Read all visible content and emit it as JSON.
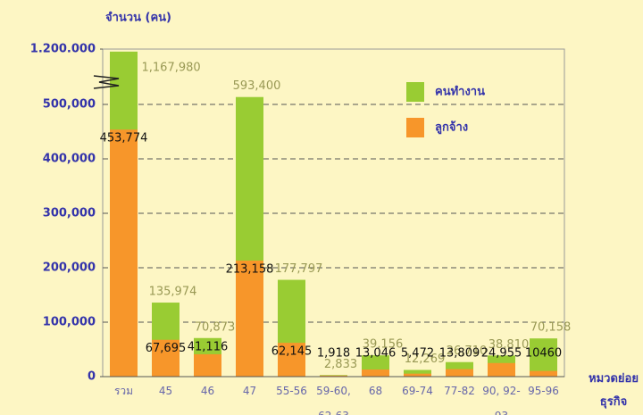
{
  "chart_data": {
    "type": "bar",
    "y_label": "จำนวน (คน)",
    "x_label": "หมวดย่อย ธุรกิจ",
    "categories": [
      "รวม",
      "45",
      "46",
      "47",
      "55-56",
      "59-60, 62-63",
      "68",
      "69-74",
      "77-82",
      "90, 92-93",
      "95-96"
    ],
    "series": [
      {
        "name": "คนทำงาน",
        "color": "#99cc33",
        "values": [
          1167980,
          135974,
          70873,
          593400,
          177797,
          2833,
          39156,
          12269,
          26710,
          38810,
          70158
        ],
        "value_labels": [
          "1,167,980",
          "135,974",
          "70,873",
          "593,400",
          "177,797",
          "2,833",
          "39,156",
          "12,269",
          "26,710",
          "38,810",
          "70,158"
        ]
      },
      {
        "name": "ลูกจ้าง",
        "color": "#f7962a",
        "values": [
          453774,
          67695,
          41116,
          213158,
          62145,
          1918,
          13046,
          5472,
          13809,
          24955,
          10460
        ],
        "value_labels": [
          "453,774",
          "67,695",
          "41,116",
          "213,158",
          "62,145",
          "1,918",
          "13,046",
          "5,472",
          "13,809",
          "24,955",
          "10460"
        ]
      }
    ],
    "ylim": [
      0,
      1200000
    ],
    "yticks": [
      0,
      {
        "value": 100000,
        "label": "100,000"
      },
      {
        "value": 200000,
        "label": "200,000"
      },
      {
        "value": 300000,
        "label": "300,000"
      },
      {
        "value": 400000,
        "label": "400,000"
      },
      {
        "value": 500000,
        "label": "500,000"
      },
      {
        "value": 1200000,
        "label": "1.200.000"
      }
    ],
    "grid": true,
    "legend": "upper right"
  }
}
